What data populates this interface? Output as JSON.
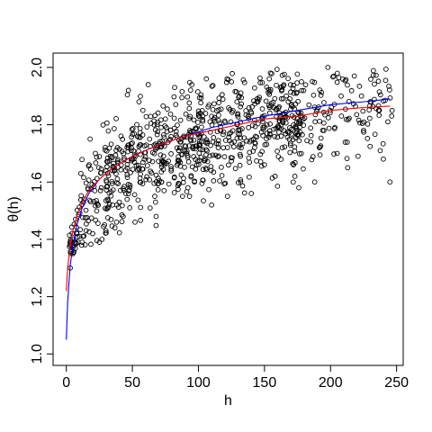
{
  "chart_data": {
    "type": "scatter",
    "title": "",
    "xlabel": "h",
    "ylabel": "θ(h)",
    "xlim": [
      -10,
      255
    ],
    "ylim": [
      0.96,
      2.05
    ],
    "xticks": [
      0,
      50,
      100,
      150,
      200,
      250
    ],
    "yticks": [
      1.0,
      1.2,
      1.4,
      1.6,
      1.8,
      2.0
    ],
    "xtick_labels": [
      "0",
      "50",
      "100",
      "150",
      "200",
      "250"
    ],
    "ytick_labels": [
      "1.0",
      "1.2",
      "1.4",
      "1.6",
      "1.8",
      "2.0"
    ],
    "grid": false,
    "legend": "none",
    "points": {
      "x": [
        245,
        240,
        237,
        218,
        213,
        198,
        195,
        178,
        176,
        173,
        172,
        162,
        140,
        145,
        125,
        132,
        150,
        106,
        110,
        95,
        82,
        88,
        68,
        62,
        55,
        52,
        48,
        47,
        45,
        38,
        35,
        30,
        27,
        25,
        22,
        20,
        18,
        15,
        12,
        11,
        10,
        8,
        7,
        5,
        3,
        5,
        13,
        230,
        225,
        208,
        205,
        188,
        185,
        168,
        158,
        152,
        122,
        115,
        97,
        92,
        75,
        72,
        58,
        43,
        40
      ],
      "y": [
        1.6,
        1.68,
        1.85,
        1.97,
        1.65,
        2.0,
        1.78,
        1.95,
        1.58,
        1.62,
        1.66,
        1.93,
        1.56,
        1.88,
        1.95,
        1.6,
        1.66,
        1.96,
        1.52,
        1.94,
        1.93,
        1.55,
        1.48,
        1.94,
        1.88,
        1.46,
        1.51,
        1.92,
        1.56,
        1.46,
        1.52,
        1.43,
        1.4,
        1.39,
        1.7,
        1.42,
        1.75,
        1.43,
        1.39,
        1.63,
        1.41,
        1.42,
        1.47,
        1.4,
        1.3,
        1.35,
        1.53,
        1.88,
        1.78,
        1.9,
        1.7,
        1.6,
        1.74,
        1.88,
        1.62,
        1.77,
        1.55,
        1.72,
        1.6,
        1.58,
        1.82,
        1.6,
        1.85,
        1.48,
        1.53
      ]
    },
    "cloud": {
      "count": 900,
      "x_range": [
        2,
        247
      ],
      "noise_sd": 0.085
    },
    "curves": [
      {
        "color": "#0000ff",
        "x": [
          0,
          1,
          2,
          3,
          5,
          8,
          12,
          17,
          25,
          35,
          50,
          70,
          90,
          110,
          130,
          150,
          175,
          200,
          225,
          245
        ],
        "y": [
          1.05,
          1.18,
          1.25,
          1.31,
          1.38,
          1.45,
          1.51,
          1.56,
          1.61,
          1.65,
          1.69,
          1.73,
          1.76,
          1.79,
          1.81,
          1.83,
          1.85,
          1.87,
          1.88,
          1.89
        ]
      },
      {
        "color": "#ff0000",
        "x": [
          0,
          1,
          2,
          3,
          5,
          8,
          12,
          17,
          25,
          35,
          50,
          70,
          90,
          110,
          130,
          150,
          175,
          200,
          225,
          245
        ],
        "y": [
          1.22,
          1.3,
          1.34,
          1.38,
          1.43,
          1.48,
          1.53,
          1.57,
          1.61,
          1.65,
          1.69,
          1.73,
          1.76,
          1.78,
          1.8,
          1.82,
          1.83,
          1.85,
          1.86,
          1.865
        ]
      }
    ],
    "colors": {
      "points": "#000000",
      "axis": "#000000"
    }
  }
}
